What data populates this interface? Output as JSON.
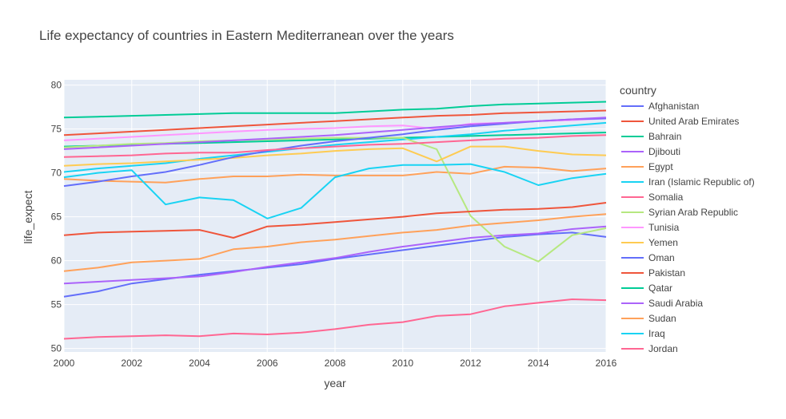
{
  "chart_data": {
    "type": "line",
    "title": "Life expectancy of countries in Eastern Mediterranean over the years",
    "xlabel": "year",
    "ylabel": "life_expect",
    "xlim": [
      2000,
      2016
    ],
    "ylim": [
      49.6,
      80.6
    ],
    "x_ticks": [
      2000,
      2002,
      2004,
      2006,
      2008,
      2010,
      2012,
      2014,
      2016
    ],
    "y_ticks": [
      50,
      55,
      60,
      65,
      70,
      75,
      80
    ],
    "grid": true,
    "legend_title": "country",
    "legend_position": "right",
    "x": [
      2000,
      2001,
      2002,
      2003,
      2004,
      2005,
      2006,
      2007,
      2008,
      2009,
      2010,
      2011,
      2012,
      2013,
      2014,
      2015,
      2016
    ],
    "series": [
      {
        "name": "Afghanistan",
        "color": "#636efa",
        "values": [
          55.9,
          56.5,
          57.4,
          57.9,
          58.4,
          58.8,
          59.2,
          59.6,
          60.2,
          60.7,
          61.2,
          61.7,
          62.2,
          62.7,
          63.0,
          63.2,
          62.7
        ]
      },
      {
        "name": "United Arab Emirates",
        "color": "#EF553B",
        "values": [
          74.3,
          74.5,
          74.7,
          74.9,
          75.1,
          75.3,
          75.5,
          75.7,
          75.9,
          76.1,
          76.3,
          76.5,
          76.6,
          76.8,
          76.9,
          77.0,
          77.1
        ]
      },
      {
        "name": "Bahrain",
        "color": "#00cc96",
        "values": [
          73.0,
          73.1,
          73.2,
          73.3,
          73.4,
          73.5,
          73.6,
          73.7,
          73.8,
          73.9,
          74.0,
          74.1,
          74.2,
          74.3,
          74.4,
          74.5,
          74.6
        ]
      },
      {
        "name": "Djibouti",
        "color": "#ab63fa",
        "values": [
          57.4,
          57.6,
          57.8,
          58.0,
          58.2,
          58.7,
          59.3,
          59.8,
          60.3,
          61.0,
          61.6,
          62.1,
          62.6,
          62.9,
          63.1,
          63.6,
          63.9
        ]
      },
      {
        "name": "Egypt",
        "color": "#FFA15A",
        "values": [
          69.3,
          69.1,
          69.0,
          68.9,
          69.3,
          69.6,
          69.6,
          69.8,
          69.7,
          69.7,
          69.7,
          70.1,
          69.9,
          70.7,
          70.6,
          70.2,
          70.5
        ]
      },
      {
        "name": "Iran (Islamic Republic of)",
        "color": "#19d3f3",
        "values": [
          70.1,
          70.5,
          70.8,
          71.1,
          71.6,
          72.0,
          72.4,
          72.8,
          73.2,
          73.5,
          73.8,
          74.1,
          74.4,
          74.8,
          75.1,
          75.4,
          75.7
        ]
      },
      {
        "name": "Somalia",
        "color": "#FF6692",
        "values": [
          51.1,
          51.3,
          51.4,
          51.5,
          51.4,
          51.7,
          51.6,
          51.8,
          52.2,
          52.7,
          53.0,
          53.7,
          53.9,
          54.8,
          55.2,
          55.6,
          55.5
        ]
      },
      {
        "name": "Syrian Arab Republic",
        "color": "#B6E880",
        "values": [
          72.9,
          73.1,
          73.3,
          73.4,
          73.6,
          73.7,
          73.8,
          73.9,
          74.0,
          74.0,
          74.0,
          72.7,
          65.1,
          61.6,
          59.9,
          62.9,
          63.7
        ]
      },
      {
        "name": "Tunisia",
        "color": "#FF97FF",
        "values": [
          73.7,
          73.9,
          74.1,
          74.3,
          74.5,
          74.7,
          74.9,
          75.0,
          75.1,
          75.3,
          75.4,
          75.0,
          75.6,
          75.7,
          75.9,
          76.0,
          76.2
        ]
      },
      {
        "name": "Yemen",
        "color": "#FECB52",
        "values": [
          70.8,
          71.0,
          71.1,
          71.3,
          71.5,
          71.7,
          72.0,
          72.2,
          72.5,
          72.7,
          72.8,
          71.3,
          73.0,
          73.0,
          72.5,
          72.1,
          72.0
        ]
      },
      {
        "name": "Oman",
        "color": "#636efa",
        "values": [
          68.5,
          69.0,
          69.6,
          70.1,
          70.9,
          71.8,
          72.5,
          73.1,
          73.6,
          74.0,
          74.4,
          74.9,
          75.3,
          75.6,
          75.9,
          76.1,
          76.2
        ]
      },
      {
        "name": "Pakistan",
        "color": "#EF553B",
        "values": [
          62.9,
          63.2,
          63.3,
          63.4,
          63.5,
          62.6,
          63.9,
          64.1,
          64.4,
          64.7,
          65.0,
          65.4,
          65.6,
          65.8,
          65.9,
          66.1,
          66.6
        ]
      },
      {
        "name": "Qatar",
        "color": "#00cc96",
        "values": [
          76.3,
          76.4,
          76.5,
          76.6,
          76.7,
          76.8,
          76.8,
          76.8,
          76.8,
          77.0,
          77.2,
          77.3,
          77.6,
          77.8,
          77.9,
          78.0,
          78.1
        ]
      },
      {
        "name": "Saudi Arabia",
        "color": "#ab63fa",
        "values": [
          72.7,
          72.9,
          73.1,
          73.3,
          73.5,
          73.7,
          73.9,
          74.1,
          74.3,
          74.6,
          74.9,
          75.2,
          75.5,
          75.7,
          75.9,
          76.1,
          76.3
        ]
      },
      {
        "name": "Sudan",
        "color": "#FFA15A",
        "values": [
          58.8,
          59.2,
          59.8,
          60.0,
          60.2,
          61.3,
          61.6,
          62.1,
          62.4,
          62.8,
          63.2,
          63.5,
          64.0,
          64.3,
          64.6,
          65.0,
          65.3
        ]
      },
      {
        "name": "Iraq",
        "color": "#19d3f3",
        "values": [
          69.5,
          70.0,
          70.3,
          66.4,
          67.2,
          66.9,
          64.8,
          66.0,
          69.5,
          70.5,
          70.9,
          70.9,
          71.0,
          70.1,
          68.6,
          69.4,
          69.9
        ]
      },
      {
        "name": "Jordan",
        "color": "#FF6692",
        "values": [
          71.8,
          71.9,
          72.0,
          72.2,
          72.3,
          72.3,
          72.6,
          72.8,
          73.0,
          73.2,
          73.3,
          73.5,
          73.7,
          73.9,
          74.0,
          74.2,
          74.3
        ]
      }
    ]
  }
}
